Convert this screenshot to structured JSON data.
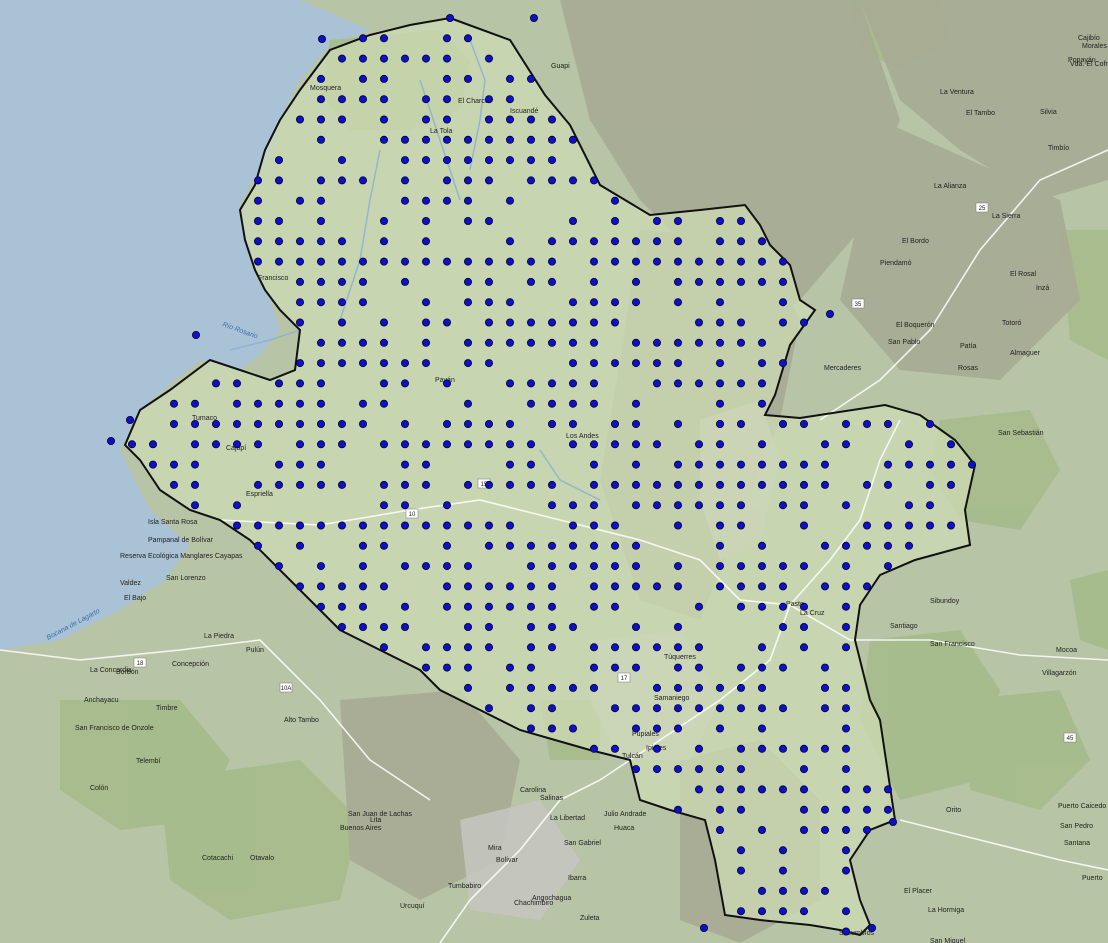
{
  "colors": {
    "sea": "#a9c2d6",
    "land": "#b8c4a6",
    "region_fill": "#c9d9b2",
    "coastal_plain": "#c5d6a9",
    "forest": "#9fb784",
    "mountain": "#a9ad95",
    "high_mountain": "#c6c6c0",
    "border": "#111111",
    "dot_fill": "#1010c8",
    "dot_stroke": "#000030",
    "water_label": "#3d6ea8",
    "town_label": "#222222",
    "road": "#ffffff"
  },
  "labels": {
    "places": [
      "Mosquera",
      "El Charco",
      "La Tola",
      "Iscuandé",
      "Guapi",
      "Francisco",
      "Payán",
      "Cajapí",
      "Espriella",
      "Isla Santa Rosa",
      "Pampanal de Bolívar",
      "Reserva Ecológica Manglares Cayapas",
      "Valdez",
      "El Bajo",
      "San Lorenzo",
      "Borbón",
      "La Concordia",
      "Anchayacu",
      "San Francisco de Onzole",
      "Timbre",
      "La Piedra",
      "Concepción",
      "Pulún",
      "Alto Tambo",
      "Telembí",
      "Colón",
      "Los Andes",
      "Pasto",
      "Samaniego",
      "Túquerres",
      "Ipiales",
      "Pupiales",
      "Tulcán",
      "Julio Andrade",
      "Huaca",
      "San Gabriel",
      "La Libertad",
      "Popayán",
      "El Tambo",
      "Timbío",
      "La Alianza",
      "Sucumbíos",
      "Mocoa",
      "Villagarzón",
      "Puerto Caicedo",
      "San Pedro",
      "Santana",
      "Orito",
      "El Placer",
      "La Hormiga",
      "San Miguel",
      "Puerto",
      "Santiago",
      "San Francisco",
      "Sibundoy",
      "Mercaderes",
      "El Bordo",
      "Piendamó",
      "Cajibío",
      "Morales",
      "Vda. El Cofre",
      "La Ventura",
      "Silvia",
      "Inzá",
      "Totoró",
      "Rosas",
      "La Sierra",
      "El Rosal",
      "Patía",
      "Almaguer",
      "San Sebastián",
      "El Boquerón",
      "San Pablo",
      "La Cruz",
      "Mira",
      "Bolívar",
      "Tumbabiro",
      "Urcuquí",
      "Angochagua",
      "Ibarra",
      "Zuleta",
      "Chachimbiro",
      "Cotacachi",
      "Otavalo",
      "Buenos Aires",
      "San Juan de Lachas",
      "Lita",
      "Carolina",
      "Salinas",
      "Tumaco"
    ],
    "water": [
      "Río Rosario",
      "Bocana de Lagarto"
    ],
    "roads": [
      "10",
      "15",
      "25",
      "35",
      "45",
      "17",
      "18",
      "10A"
    ]
  }
}
